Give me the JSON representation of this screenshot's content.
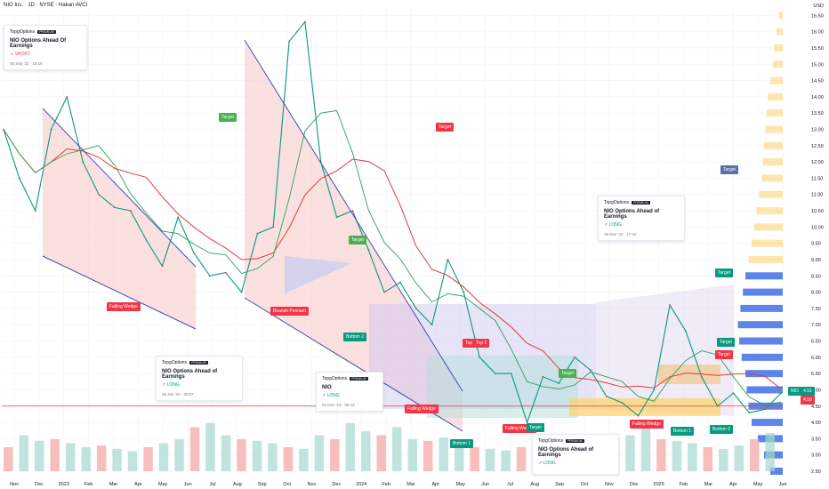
{
  "header": {
    "title": "NIO Inc. · 1D · NYSE · Hakan AVCI",
    "currency": "USD"
  },
  "notes": [
    {
      "id": "n1",
      "brand": "TopgOptions",
      "badge": "PREMIUM",
      "headline": "NIO Options Ahead Of Earnings",
      "side": "SHORT",
      "time": "05 Sep '22 · 16:16"
    },
    {
      "id": "n2",
      "brand": "TopgOptions",
      "badge": "PREMIUM",
      "headline": "NIO Options Ahead of Earnings",
      "side": "LONG",
      "time": "05 Jun '23 · 09:07"
    },
    {
      "id": "n3",
      "brand": "TopgOptions",
      "badge": "PREMIUM",
      "headline": "NIO",
      "side": "LONG",
      "time": "03 Dec '23 · 08:14"
    },
    {
      "id": "n4",
      "brand": "TopgOptions",
      "badge": "PREMIUM",
      "headline": "NIO Options Ahead of Earnings",
      "side": "LONG",
      "time": "16 Nov '24 · 17:32"
    },
    {
      "id": "n5",
      "brand": "TopgOptions",
      "badge": "PREMIUM",
      "headline": "NIO Options Ahead of Earnings",
      "side": "LONG",
      "time": ""
    }
  ],
  "labels": {
    "falling_wedge": "Falling Wedge",
    "bearish_pennant": "Bearish Pennant",
    "target": "Target",
    "bottom_1": "Bottom 1",
    "bottom_2": "Bottom 2",
    "top": "Top",
    "top_2": "Top 2"
  },
  "chart_data": {
    "type": "line",
    "title": "NIO Inc. · 1D · NYSE · Hakan AVCI",
    "ylabel": "USD",
    "y_ticks": [
      "16.50",
      "16.00",
      "15.50",
      "15.00",
      "14.50",
      "14.00",
      "13.50",
      "13.00",
      "12.50",
      "12.00",
      "11.50",
      "11.00",
      "10.50",
      "10.00",
      "9.50",
      "9.00",
      "8.50",
      "8.00",
      "7.50",
      "7.00",
      "6.50",
      "6.00",
      "5.50",
      "5.00",
      "4.50",
      "4.00",
      "3.50",
      "3.00",
      "2.50"
    ],
    "x_ticks": [
      "Nov",
      "Dec",
      "2023",
      "Feb",
      "Mar",
      "Apr",
      "May",
      "Jun",
      "Jul",
      "Aug",
      "Sep",
      "Oct",
      "Nov",
      "Dec",
      "2024",
      "Feb",
      "Mar",
      "Apr",
      "May",
      "Jun",
      "Jul",
      "Aug",
      "Sep",
      "Oct",
      "Nov",
      "Dec",
      "2025",
      "Feb",
      "Mar",
      "Apr",
      "May",
      "Jun"
    ],
    "ylim": [
      2.5,
      16.7
    ],
    "price_labels": {
      "last": "4.91",
      "level": "4.50",
      "ticker": "NIO"
    },
    "series": [
      {
        "name": "NIO",
        "color": "#089981",
        "values": [
          13.0,
          11.5,
          10.5,
          13.0,
          14.0,
          12.0,
          11.0,
          10.6,
          10.5,
          9.6,
          8.8,
          10.3,
          9.2,
          8.5,
          8.6,
          8.0,
          9.8,
          10.0,
          15.7,
          16.3,
          12.0,
          10.3,
          10.5,
          9.3,
          8.0,
          8.3,
          7.5,
          7.0,
          9.0,
          8.0,
          6.0,
          5.5,
          5.5,
          4.0,
          5.4,
          5.2,
          6.0,
          5.6,
          4.8,
          4.6,
          4.2,
          5.0,
          7.6,
          6.8,
          5.4,
          4.5,
          4.9,
          4.3,
          4.4,
          4.9
        ]
      }
    ],
    "volume": [
      30,
      45,
      38,
      40,
      35,
      30,
      32,
      28,
      25,
      30,
      35,
      40,
      55,
      60,
      45,
      40,
      38,
      35,
      30,
      28,
      45,
      40,
      60,
      50,
      45,
      55,
      40,
      38,
      42,
      35,
      30,
      28,
      26,
      30,
      32,
      35,
      30,
      28,
      25,
      32,
      45,
      55,
      40,
      38,
      35,
      30,
      28,
      32,
      40,
      48
    ],
    "grid": true,
    "legend": "none"
  }
}
